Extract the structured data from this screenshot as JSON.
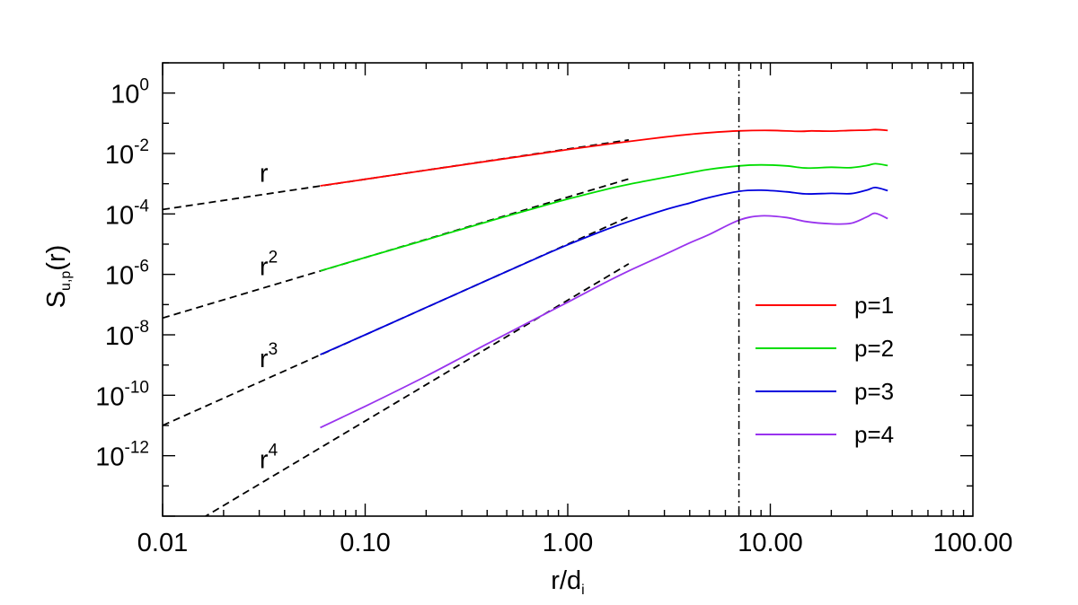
{
  "chart_data": {
    "type": "line",
    "x_scale": "log",
    "y_scale": "log",
    "xlim": [
      0.01,
      100
    ],
    "ylim": [
      1e-14,
      10.0
    ],
    "x_ticks": [
      {
        "value": 0.01,
        "label": "0.01"
      },
      {
        "value": 0.1,
        "label": "0.10"
      },
      {
        "value": 1,
        "label": "1.00"
      },
      {
        "value": 10,
        "label": "10.00"
      },
      {
        "value": 100,
        "label": "100.00"
      }
    ],
    "y_ticks": [
      {
        "value": 1,
        "base": "10",
        "exp": "0"
      },
      {
        "value": 0.01,
        "base": "10",
        "exp": "-2"
      },
      {
        "value": 0.0001,
        "base": "10",
        "exp": "-4"
      },
      {
        "value": 1e-06,
        "base": "10",
        "exp": "-6"
      },
      {
        "value": 1e-08,
        "base": "10",
        "exp": "-8"
      },
      {
        "value": 1e-10,
        "base": "10",
        "exp": "-10"
      },
      {
        "value": 1e-12,
        "base": "10",
        "exp": "-12"
      }
    ],
    "xlabel": {
      "main": "r/d",
      "sub": "i"
    },
    "ylabel": {
      "main": "S",
      "sub": "u,p",
      "suffix": "(r)"
    },
    "vline_x": 7.0,
    "legend_position": "right",
    "series": [
      {
        "name": "p=1",
        "color": "#ff0000",
        "points": [
          [
            0.06,
            0.00085
          ],
          [
            0.1,
            0.0014
          ],
          [
            0.2,
            0.0028
          ],
          [
            0.4,
            0.0055
          ],
          [
            0.7,
            0.0095
          ],
          [
            1.0,
            0.0135
          ],
          [
            1.5,
            0.0195
          ],
          [
            2.0,
            0.025
          ],
          [
            3.0,
            0.035
          ],
          [
            4.0,
            0.043
          ],
          [
            5.0,
            0.049
          ],
          [
            7.0,
            0.056
          ],
          [
            10.0,
            0.058
          ],
          [
            14.0,
            0.054
          ],
          [
            16.0,
            0.056
          ],
          [
            20.0,
            0.055
          ],
          [
            25.0,
            0.058
          ],
          [
            30.0,
            0.059
          ],
          [
            33.0,
            0.062
          ],
          [
            38.0,
            0.058
          ]
        ]
      },
      {
        "name": "p=2",
        "color": "#00dd00",
        "points": [
          [
            0.06,
            1.3e-06
          ],
          [
            0.1,
            3.6e-06
          ],
          [
            0.2,
            1.4e-05
          ],
          [
            0.4,
            5.5e-05
          ],
          [
            0.7,
            0.00016
          ],
          [
            1.0,
            0.00031
          ],
          [
            1.5,
            0.00062
          ],
          [
            2.0,
            0.00095
          ],
          [
            3.0,
            0.0016
          ],
          [
            4.0,
            0.0023
          ],
          [
            5.0,
            0.003
          ],
          [
            7.0,
            0.0039
          ],
          [
            9.0,
            0.0042
          ],
          [
            12.0,
            0.0039
          ],
          [
            15.0,
            0.0033
          ],
          [
            20.0,
            0.0035
          ],
          [
            25.0,
            0.0034
          ],
          [
            30.0,
            0.004
          ],
          [
            33.0,
            0.0046
          ],
          [
            38.0,
            0.004
          ]
        ]
      },
      {
        "name": "p=3",
        "color": "#0000dd",
        "points": [
          [
            0.06,
            2.2e-09
          ],
          [
            0.1,
            1e-08
          ],
          [
            0.2,
            8e-08
          ],
          [
            0.4,
            6.4e-07
          ],
          [
            0.7,
            3.4e-06
          ],
          [
            1.0,
            9.5e-06
          ],
          [
            1.5,
            2.8e-05
          ],
          [
            2.0,
            5.6e-05
          ],
          [
            3.0,
            0.000135
          ],
          [
            4.0,
            0.00023
          ],
          [
            5.0,
            0.00035
          ],
          [
            7.0,
            0.00056
          ],
          [
            9.0,
            0.00061
          ],
          [
            12.0,
            0.00054
          ],
          [
            15.0,
            0.00046
          ],
          [
            20.0,
            0.00048
          ],
          [
            25.0,
            0.00047
          ],
          [
            30.0,
            0.00062
          ],
          [
            33.0,
            0.00075
          ],
          [
            38.0,
            0.00059
          ]
        ]
      },
      {
        "name": "p=4",
        "color": "#9933ee",
        "points": [
          [
            0.06,
            8.5e-12
          ],
          [
            0.1,
            4.3e-11
          ],
          [
            0.2,
            4.3e-10
          ],
          [
            0.4,
            5e-09
          ],
          [
            0.7,
            3.5e-08
          ],
          [
            1.0,
            1.2e-07
          ],
          [
            1.5,
            5e-07
          ],
          [
            2.0,
            1.3e-06
          ],
          [
            3.0,
            4.5e-06
          ],
          [
            4.0,
            1.1e-05
          ],
          [
            5.0,
            2.1e-05
          ],
          [
            7.0,
            6.2e-05
          ],
          [
            9.0,
            8.6e-05
          ],
          [
            12.0,
            7.6e-05
          ],
          [
            15.0,
            5.6e-05
          ],
          [
            20.0,
            4.7e-05
          ],
          [
            25.0,
            4.9e-05
          ],
          [
            30.0,
            8e-05
          ],
          [
            33.0,
            0.000105
          ],
          [
            38.0,
            7e-05
          ]
        ]
      }
    ],
    "fits": [
      {
        "label": "r",
        "exp": "",
        "power": 1,
        "color": "#000000",
        "points": [
          [
            0.01,
            0.00014
          ],
          [
            2.0,
            0.028
          ]
        ]
      },
      {
        "label": "r",
        "exp": "2",
        "power": 2,
        "color": "#000000",
        "points": [
          [
            0.01,
            3.6e-08
          ],
          [
            2.0,
            0.00144
          ]
        ]
      },
      {
        "label": "r",
        "exp": "3",
        "power": 3,
        "color": "#000000",
        "points": [
          [
            0.01,
            1e-11
          ],
          [
            2.0,
            8e-05
          ]
        ]
      },
      {
        "label": "r",
        "exp": "4",
        "power": 4,
        "color": "#000000",
        "points": [
          [
            0.01,
            1.4e-15
          ],
          [
            2.0,
            2.24e-06
          ]
        ]
      }
    ]
  }
}
